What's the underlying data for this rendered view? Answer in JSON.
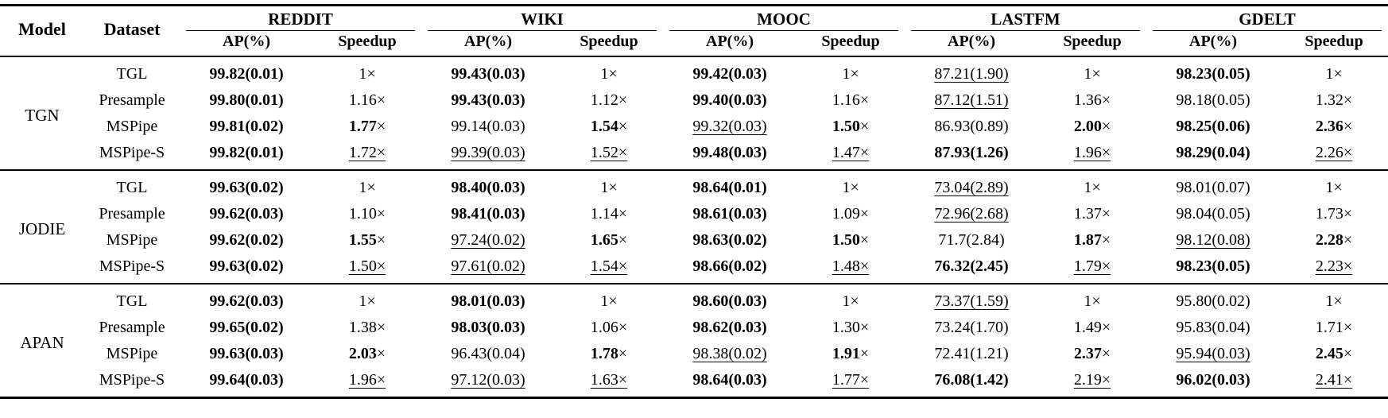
{
  "table": {
    "headers": {
      "model": "Model",
      "dataset": "Dataset",
      "ap": "AP(%)",
      "speedup": "Speedup"
    },
    "dataset_groups": [
      "REDDIT",
      "WIKI",
      "MOOC",
      "LASTFM",
      "GDELT"
    ],
    "blocks": [
      {
        "model": "TGN",
        "rows": [
          {
            "method": "TGL",
            "cells": [
              {
                "text": "99.82(0.01)",
                "bold": true
              },
              {
                "text": "1×"
              },
              {
                "text": "99.43(0.03)",
                "bold": true
              },
              {
                "text": "1×"
              },
              {
                "text": "99.42(0.03)",
                "bold": true
              },
              {
                "text": "1×"
              },
              {
                "text": "87.21(1.90)",
                "underline": true
              },
              {
                "text": "1×"
              },
              {
                "text": "98.23(0.05)",
                "bold": true
              },
              {
                "text": "1×"
              }
            ]
          },
          {
            "method": "Presample",
            "cells": [
              {
                "text": "99.80(0.01)",
                "bold": true
              },
              {
                "text": "1.16×"
              },
              {
                "text": "99.43(0.03)",
                "bold": true
              },
              {
                "text": "1.12×"
              },
              {
                "text": "99.40(0.03)",
                "bold": true
              },
              {
                "text": "1.16×"
              },
              {
                "text": "87.12(1.51)",
                "underline": true
              },
              {
                "text": "1.36×"
              },
              {
                "text": "98.18(0.05)"
              },
              {
                "text": "1.32×"
              }
            ]
          },
          {
            "method": "MSPipe",
            "cells": [
              {
                "text": "99.81(0.02)",
                "bold": true
              },
              {
                "text": "1.77×",
                "bold": true
              },
              {
                "text": "99.14(0.03)"
              },
              {
                "text": "1.54×",
                "bold": true
              },
              {
                "text": "99.32(0.03)",
                "underline": true
              },
              {
                "text": "1.50×",
                "bold": true
              },
              {
                "text": "86.93(0.89)"
              },
              {
                "text": "2.00×",
                "bold": true
              },
              {
                "text": "98.25(0.06)",
                "bold": true
              },
              {
                "text": "2.36×",
                "bold": true
              }
            ]
          },
          {
            "method": "MSPipe-S",
            "cells": [
              {
                "text": "99.82(0.01)",
                "bold": true
              },
              {
                "text": "1.72×",
                "underline": true
              },
              {
                "text": "99.39(0.03)",
                "underline": true
              },
              {
                "text": "1.52×",
                "underline": true
              },
              {
                "text": "99.48(0.03)",
                "bold": true
              },
              {
                "text": "1.47×",
                "underline": true
              },
              {
                "text": "87.93(1.26)",
                "bold": true
              },
              {
                "text": "1.96×",
                "underline": true
              },
              {
                "text": "98.29(0.04)",
                "bold": true
              },
              {
                "text": "2.26×",
                "underline": true
              }
            ]
          }
        ]
      },
      {
        "model": "JODIE",
        "rows": [
          {
            "method": "TGL",
            "cells": [
              {
                "text": "99.63(0.02)",
                "bold": true
              },
              {
                "text": "1×"
              },
              {
                "text": "98.40(0.03)",
                "bold": true
              },
              {
                "text": "1×"
              },
              {
                "text": "98.64(0.01)",
                "bold": true
              },
              {
                "text": "1×"
              },
              {
                "text": "73.04(2.89)",
                "underline": true
              },
              {
                "text": "1×"
              },
              {
                "text": "98.01(0.07)"
              },
              {
                "text": "1×"
              }
            ]
          },
          {
            "method": "Presample",
            "cells": [
              {
                "text": "99.62(0.03)",
                "bold": true
              },
              {
                "text": "1.10×"
              },
              {
                "text": "98.41(0.03)",
                "bold": true
              },
              {
                "text": "1.14×"
              },
              {
                "text": "98.61(0.03)",
                "bold": true
              },
              {
                "text": "1.09×"
              },
              {
                "text": "72.96(2.68)",
                "underline": true
              },
              {
                "text": "1.37×"
              },
              {
                "text": "98.04(0.05)"
              },
              {
                "text": "1.73×"
              }
            ]
          },
          {
            "method": "MSPipe",
            "cells": [
              {
                "text": "99.62(0.02)",
                "bold": true
              },
              {
                "text": "1.55×",
                "bold": true
              },
              {
                "text": "97.24(0.02)",
                "underline": true
              },
              {
                "text": "1.65×",
                "bold": true
              },
              {
                "text": "98.63(0.02)",
                "bold": true
              },
              {
                "text": "1.50×",
                "bold": true
              },
              {
                "text": "71.7(2.84)"
              },
              {
                "text": "1.87×",
                "bold": true
              },
              {
                "text": "98.12(0.08)",
                "underline": true
              },
              {
                "text": "2.28×",
                "bold": true
              }
            ]
          },
          {
            "method": "MSPipe-S",
            "cells": [
              {
                "text": "99.63(0.02)",
                "bold": true
              },
              {
                "text": "1.50×",
                "underline": true
              },
              {
                "text": "97.61(0.02)",
                "underline": true
              },
              {
                "text": "1.54×",
                "underline": true
              },
              {
                "text": "98.66(0.02)",
                "bold": true
              },
              {
                "text": "1.48×",
                "underline": true
              },
              {
                "text": "76.32(2.45)",
                "bold": true
              },
              {
                "text": "1.79×",
                "underline": true
              },
              {
                "text": "98.23(0.05)",
                "bold": true
              },
              {
                "text": "2.23×",
                "underline": true
              }
            ]
          }
        ]
      },
      {
        "model": "APAN",
        "rows": [
          {
            "method": "TGL",
            "cells": [
              {
                "text": "99.62(0.03)",
                "bold": true
              },
              {
                "text": "1×"
              },
              {
                "text": "98.01(0.03)",
                "bold": true
              },
              {
                "text": "1×"
              },
              {
                "text": "98.60(0.03)",
                "bold": true
              },
              {
                "text": "1×"
              },
              {
                "text": "73.37(1.59)",
                "underline": true
              },
              {
                "text": "1×"
              },
              {
                "text": "95.80(0.02)"
              },
              {
                "text": "1×"
              }
            ]
          },
          {
            "method": "Presample",
            "cells": [
              {
                "text": "99.65(0.02)",
                "bold": true
              },
              {
                "text": "1.38×"
              },
              {
                "text": "98.03(0.03)",
                "bold": true
              },
              {
                "text": "1.06×"
              },
              {
                "text": "98.62(0.03)",
                "bold": true
              },
              {
                "text": "1.30×"
              },
              {
                "text": "73.24(1.70)"
              },
              {
                "text": "1.49×"
              },
              {
                "text": "95.83(0.04)"
              },
              {
                "text": "1.71×"
              }
            ]
          },
          {
            "method": "MSPipe",
            "cells": [
              {
                "text": "99.63(0.03)",
                "bold": true
              },
              {
                "text": "2.03×",
                "bold": true
              },
              {
                "text": "96.43(0.04)"
              },
              {
                "text": "1.78×",
                "bold": true
              },
              {
                "text": "98.38(0.02)",
                "underline": true
              },
              {
                "text": "1.91×",
                "bold": true
              },
              {
                "text": "72.41(1.21)"
              },
              {
                "text": "2.37×",
                "bold": true
              },
              {
                "text": "95.94(0.03)",
                "underline": true
              },
              {
                "text": "2.45×",
                "bold": true
              }
            ]
          },
          {
            "method": "MSPipe-S",
            "cells": [
              {
                "text": "99.64(0.03)",
                "bold": true
              },
              {
                "text": "1.96×",
                "underline": true
              },
              {
                "text": "97.12(0.03)",
                "underline": true
              },
              {
                "text": "1.63×",
                "underline": true
              },
              {
                "text": "98.64(0.03)",
                "bold": true
              },
              {
                "text": "1.77×",
                "underline": true
              },
              {
                "text": "76.08(1.42)",
                "bold": true
              },
              {
                "text": "2.19×",
                "underline": true
              },
              {
                "text": "96.02(0.03)",
                "bold": true
              },
              {
                "text": "2.41×",
                "underline": true
              }
            ]
          }
        ]
      }
    ]
  }
}
